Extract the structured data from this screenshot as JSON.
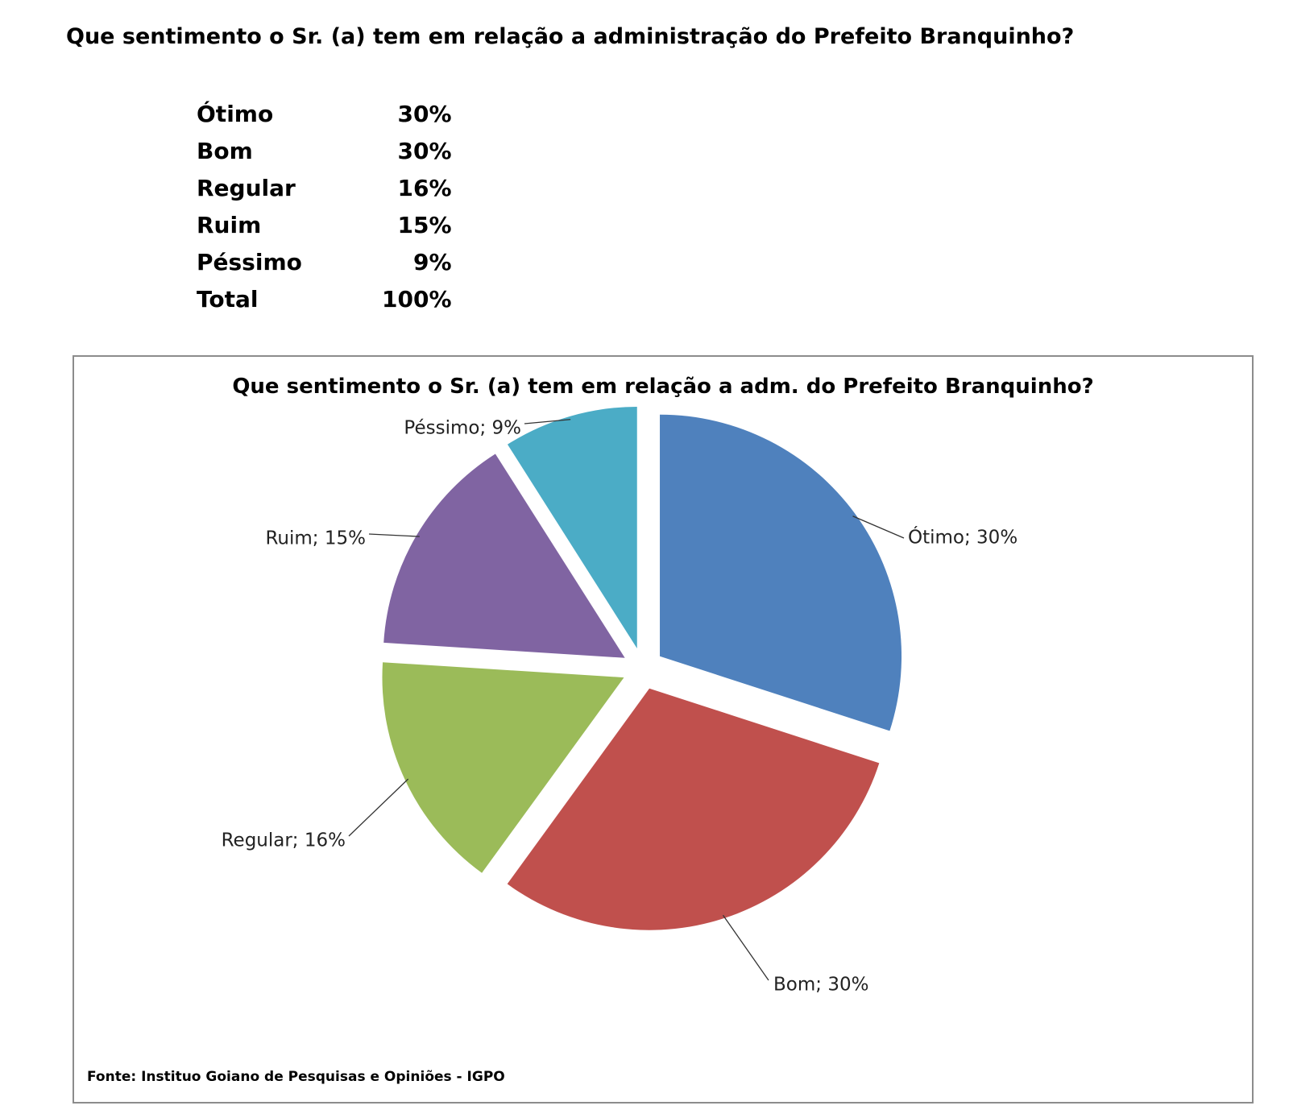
{
  "heading": "Que sentimento o Sr. (a) tem em relação a administração do Prefeito Branquinho?",
  "summary_table": [
    {
      "label": "Ótimo",
      "value": "30%"
    },
    {
      "label": "Bom",
      "value": "30%"
    },
    {
      "label": "Regular",
      "value": "16%"
    },
    {
      "label": "Ruim",
      "value": "15%"
    },
    {
      "label": "Péssimo",
      "value": "9%"
    },
    {
      "label": "Total",
      "value": "100%"
    }
  ],
  "chart_data": {
    "type": "pie",
    "title": "Que sentimento o Sr. (a) tem em relação a adm. do Prefeito Branquinho?",
    "categories": [
      "Ótimo",
      "Bom",
      "Regular",
      "Ruim",
      "Péssimo"
    ],
    "values": [
      30,
      30,
      16,
      15,
      9
    ],
    "data_labels": [
      "Ótimo; 30%",
      "Bom; 30%",
      "Regular; 16%",
      "Ruim; 15%",
      "Péssimo; 9%"
    ],
    "colors": [
      "#4f81bd",
      "#c0504d",
      "#9bbb59",
      "#8064a2",
      "#4bacc6"
    ],
    "exploded": true,
    "legend": "none"
  },
  "source": "Fonte: Instituo Goiano de Pesquisas e Opiniões - IGPO"
}
